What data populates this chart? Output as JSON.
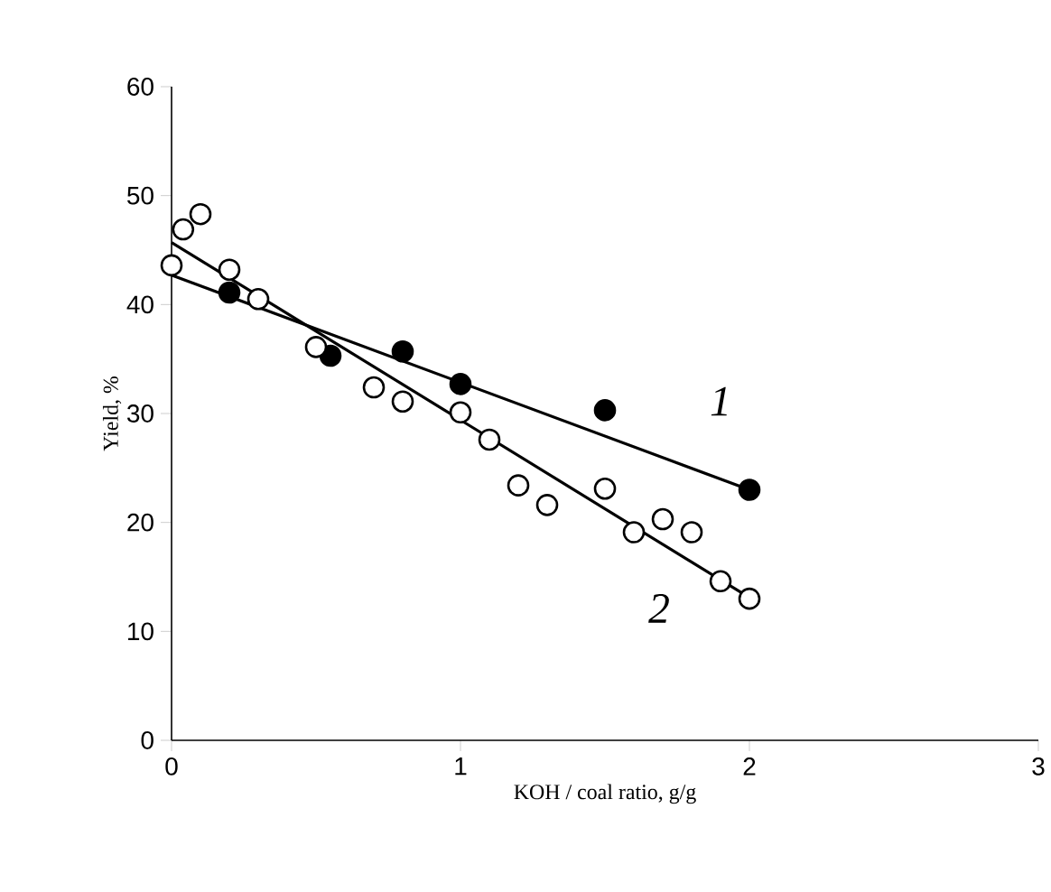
{
  "chart_data": {
    "type": "scatter",
    "xlabel": "KOH / coal ratio, g/g",
    "ylabel": "Yield, %",
    "xlim": [
      0,
      3
    ],
    "ylim": [
      0,
      60
    ],
    "xticks": [
      0,
      1,
      2,
      3
    ],
    "yticks": [
      0,
      10,
      20,
      30,
      40,
      50,
      60
    ],
    "grid": false,
    "series": [
      {
        "type": "line",
        "color": "#000000",
        "x": [
          0,
          2
        ],
        "values": [
          42.7,
          23.0
        ]
      },
      {
        "type": "line",
        "color": "#000000",
        "x": [
          0,
          2
        ],
        "values": [
          45.7,
          13.1
        ]
      },
      {
        "color": "#000000",
        "marker": "circle",
        "x": [
          0.2,
          0.55,
          0.8,
          1.0,
          1.5,
          2.0
        ],
        "values": [
          41.1,
          35.3,
          35.7,
          32.7,
          30.3,
          23.0
        ]
      },
      {
        "color": "#ffffff",
        "marker": "circle",
        "x": [
          0,
          0.04,
          0.1,
          0.2,
          0.3,
          0.5,
          0.7,
          0.8,
          1.0,
          1.1,
          1.2,
          1.3,
          1.5,
          1.6,
          1.7,
          1.8,
          1.9,
          2.0
        ],
        "values": [
          43.6,
          46.9,
          48.3,
          43.2,
          40.5,
          36.1,
          32.4,
          31.1,
          30.1,
          27.6,
          23.4,
          21.6,
          23.1,
          19.1,
          20.3,
          19.1,
          14.6,
          13.0
        ]
      }
    ],
    "annotations": [
      "1",
      "2"
    ]
  }
}
